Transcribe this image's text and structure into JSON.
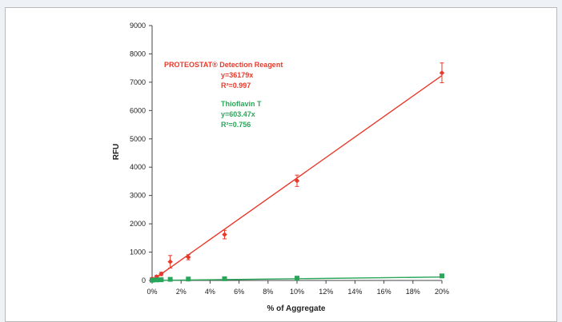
{
  "chart_data": {
    "type": "scatter",
    "title": "",
    "xlabel": "% of Aggregate",
    "ylabel": "RFU",
    "xlim": [
      0,
      20
    ],
    "ylim": [
      0,
      9000
    ],
    "x_ticks": [
      0,
      2,
      4,
      6,
      8,
      10,
      12,
      14,
      16,
      18,
      20
    ],
    "x_tick_labels": [
      "0%",
      "2%",
      "4%",
      "6%",
      "8%",
      "10%",
      "12%",
      "14%",
      "16%",
      "18%",
      "20%"
    ],
    "y_ticks": [
      0,
      1000,
      2000,
      3000,
      4000,
      5000,
      6000,
      7000,
      8000,
      9000
    ],
    "y_tick_labels": [
      "0",
      "1000",
      "2000",
      "3000",
      "4000",
      "5000",
      "6000",
      "7000",
      "8000",
      "9000"
    ],
    "grid": false,
    "series": [
      {
        "name": "PROTEOSTAT® Detection Reagent",
        "color": "#e8392a",
        "marker": "diamond",
        "x": [
          0,
          0.31,
          0.63,
          1.25,
          2.5,
          5,
          10,
          20
        ],
        "y": [
          60,
          130,
          230,
          660,
          820,
          1620,
          3520,
          7330
        ],
        "err": [
          40,
          50,
          60,
          220,
          90,
          150,
          200,
          350
        ],
        "fit": {
          "slope": 36179,
          "equation": "y=36179x",
          "r2": "R²=0.997"
        }
      },
      {
        "name": "Thioflavin T",
        "color": "#2aa65a",
        "marker": "square",
        "x": [
          0,
          0.31,
          0.63,
          1.25,
          2.5,
          5,
          10,
          20
        ],
        "y": [
          10,
          20,
          25,
          40,
          50,
          60,
          80,
          160
        ],
        "err": [
          5,
          5,
          5,
          8,
          8,
          8,
          10,
          15
        ],
        "fit": {
          "slope": 603.47,
          "equation": "y=603.47x",
          "r2": "R²=0.756"
        }
      }
    ]
  }
}
